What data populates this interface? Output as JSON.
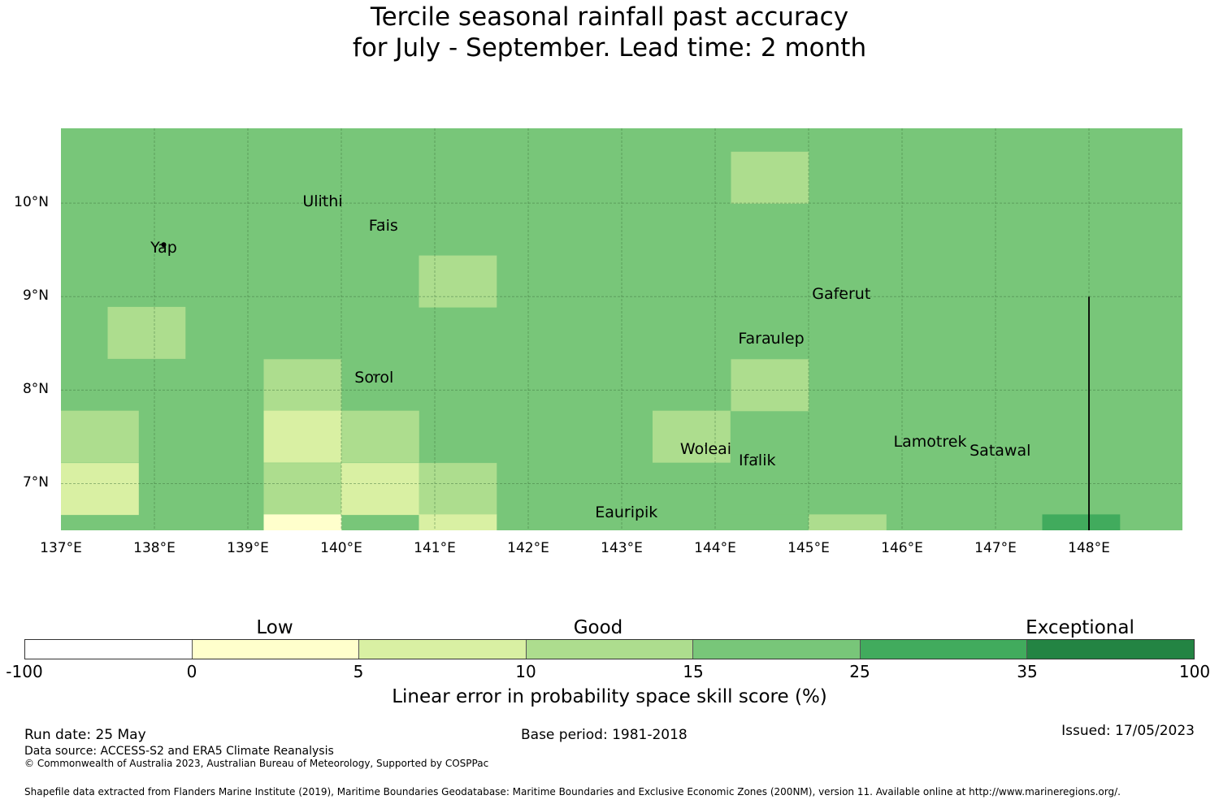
{
  "title_line1": "Tercile seasonal rainfall past accuracy",
  "title_line2": "for July - September. Lead time: 2 month",
  "map": {
    "lon_range": [
      137.0,
      149.0
    ],
    "lat_range": [
      6.5,
      10.8
    ],
    "x_ticks": [
      "137°E",
      "138°E",
      "139°E",
      "140°E",
      "141°E",
      "142°E",
      "143°E",
      "144°E",
      "145°E",
      "146°E",
      "147°E",
      "148°E"
    ],
    "y_ticks": [
      "10°N",
      "9°N",
      "8°N",
      "7°N"
    ],
    "background_category": "15-25",
    "grid_cells_lon_lat_category": [
      [
        144.17,
        10.55,
        "10-15"
      ],
      [
        140.83,
        9.44,
        "10-15"
      ],
      [
        137.5,
        8.89,
        "10-15"
      ],
      [
        139.17,
        8.33,
        "10-15"
      ],
      [
        144.17,
        8.33,
        "10-15"
      ],
      [
        137.0,
        7.78,
        "10-15"
      ],
      [
        139.17,
        7.78,
        "5-10"
      ],
      [
        140.0,
        7.78,
        "10-15"
      ],
      [
        143.33,
        7.78,
        "10-15"
      ],
      [
        137.0,
        7.22,
        "5-10"
      ],
      [
        139.17,
        7.22,
        "10-15"
      ],
      [
        140.0,
        7.22,
        "5-10"
      ],
      [
        140.83,
        7.22,
        "10-15"
      ],
      [
        139.17,
        6.67,
        "0-5"
      ],
      [
        140.83,
        6.67,
        "5-10"
      ],
      [
        144.17,
        6.67,
        "15-25"
      ],
      [
        145.0,
        6.67,
        "10-15"
      ],
      [
        147.5,
        6.67,
        "25-35"
      ]
    ],
    "islands": [
      {
        "name": "Ulithi",
        "lon": 139.8,
        "lat": 10.02
      },
      {
        "name": "Fais",
        "lon": 140.45,
        "lat": 9.76
      },
      {
        "name": "Yap",
        "lon": 138.1,
        "lat": 9.52
      },
      {
        "name": "Gaferut",
        "lon": 145.35,
        "lat": 9.03
      },
      {
        "name": "Faraulep",
        "lon": 144.6,
        "lat": 8.55
      },
      {
        "name": "Sorol",
        "lon": 140.35,
        "lat": 8.13
      },
      {
        "name": "Woleai",
        "lon": 143.9,
        "lat": 7.37
      },
      {
        "name": "Ifalik",
        "lon": 144.45,
        "lat": 7.25
      },
      {
        "name": "Lamotrek",
        "lon": 146.3,
        "lat": 7.45
      },
      {
        "name": "Satawal",
        "lon": 147.05,
        "lat": 7.35
      },
      {
        "name": "Eauripik",
        "lon": 143.05,
        "lat": 6.69
      }
    ],
    "colors": {
      "cat_neg": "#ffffff",
      "cat_0_5": "#ffffcc",
      "cat_5_10": "#d9f0a3",
      "cat_10_15": "#addd8e",
      "cat_15_25": "#78c679",
      "cat_25_35": "#41ab5d",
      "cat_35_100": "#238443"
    }
  },
  "colorbar": {
    "categories": [
      "Low",
      "Good",
      "Exceptional"
    ],
    "ticks": [
      "-100",
      "0",
      "5",
      "10",
      "15",
      "25",
      "35",
      "100"
    ],
    "label": "Linear error in probability space skill score (%)"
  },
  "footer": {
    "run_date": "Run date: 25 May",
    "base_period": "Base period: 1981-2018",
    "issued": "Issued: 17/05/2023",
    "data_source": "Data source: ACCESS-S2 and ERA5 Climate Reanalysis",
    "copyright": "© Commonwealth of Australia 2023, Australian Bureau of Meteorology, Supported by COSPPac",
    "shapefile": "Shapefile data extracted from Flanders Marine Institute (2019), Maritime Boundaries Geodatabase: Maritime Boundaries and Exclusive Economic Zones (200NM), version 11. Available online at http://www.marineregions.org/."
  }
}
